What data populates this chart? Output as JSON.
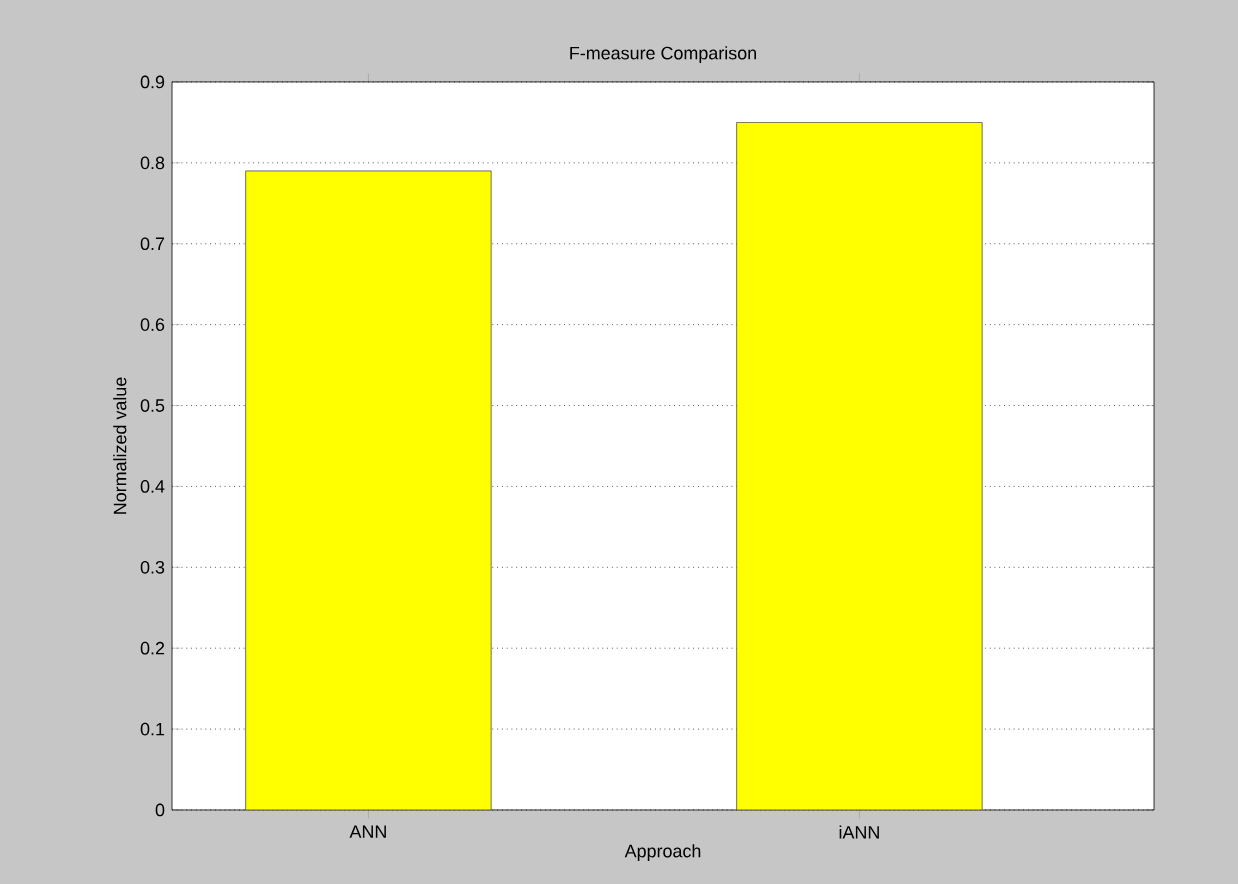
{
  "chart_data": {
    "type": "bar",
    "title": "F-measure Comparison",
    "xlabel": "Approach",
    "ylabel": "Normalized value",
    "categories": [
      "ANN",
      "iANN"
    ],
    "values": [
      0.79,
      0.85
    ],
    "color": "#ffff00",
    "ylim": [
      0,
      0.9
    ],
    "yticks": [
      0,
      0.1,
      0.2,
      0.3,
      0.4,
      0.5,
      0.6,
      0.7,
      0.8,
      0.9
    ],
    "grid": "y"
  }
}
